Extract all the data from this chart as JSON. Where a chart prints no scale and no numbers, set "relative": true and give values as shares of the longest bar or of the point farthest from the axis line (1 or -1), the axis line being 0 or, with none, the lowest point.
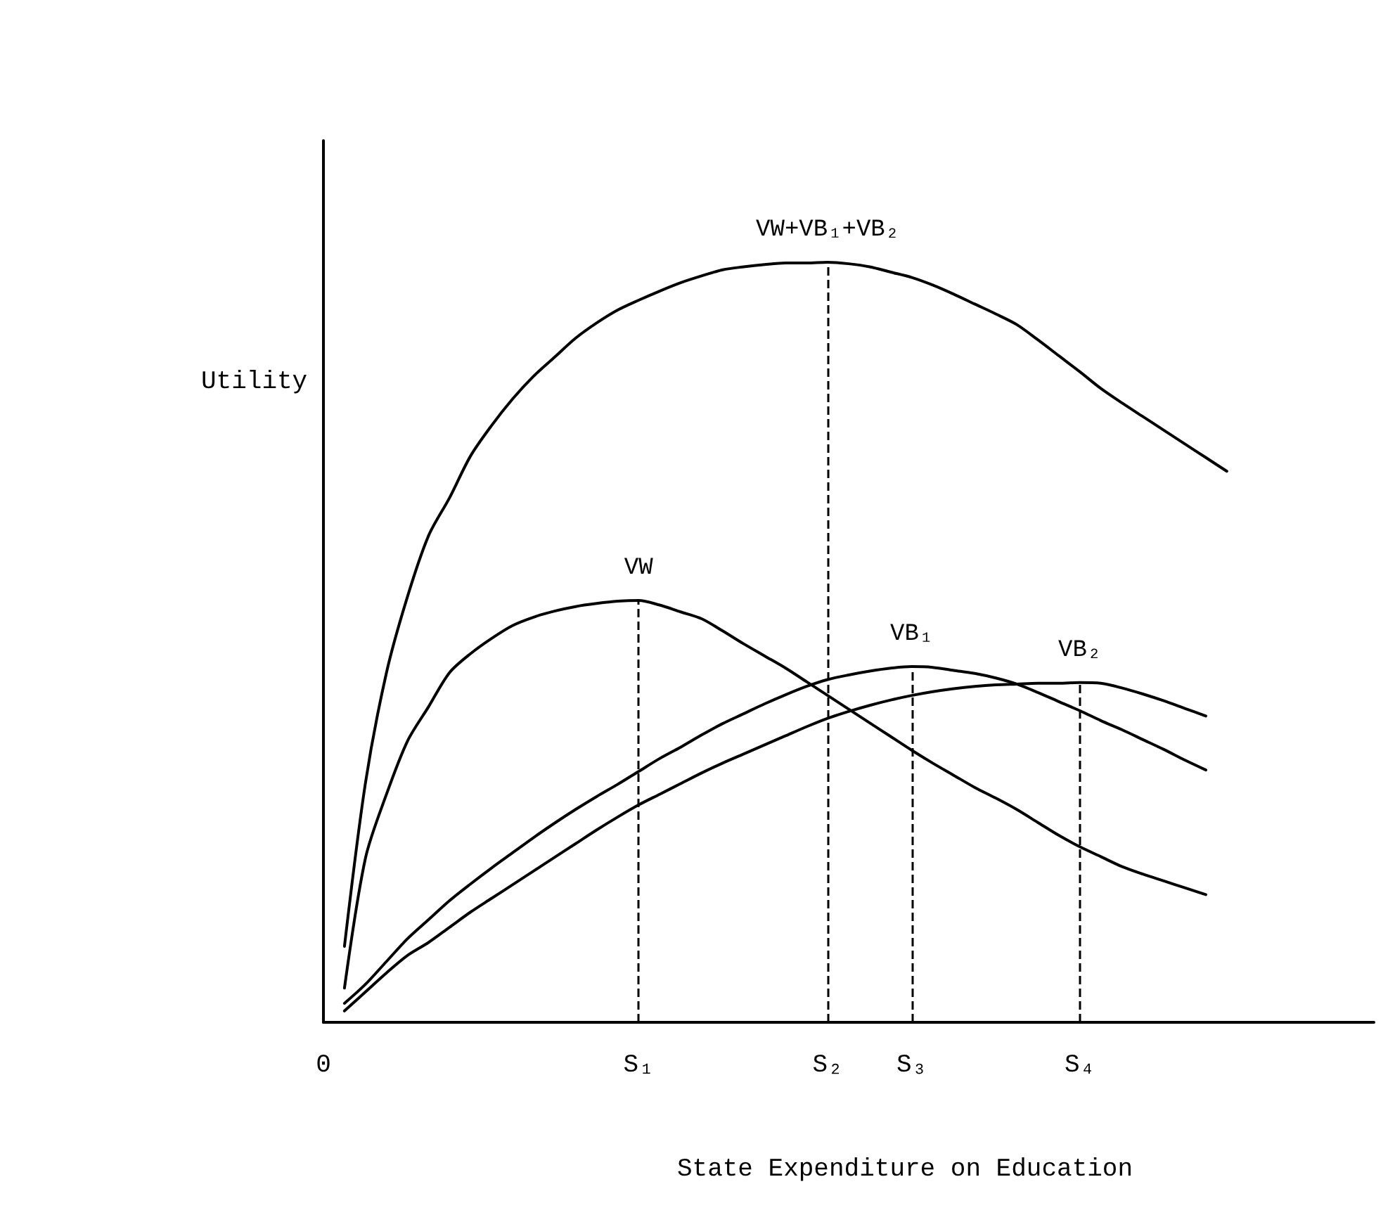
{
  "chart_data": {
    "type": "line",
    "relative": true,
    "xlabel": "State Expenditure on Education",
    "ylabel": "Utility",
    "categories": [
      "0",
      null,
      null,
      null,
      null,
      null,
      null,
      null,
      null,
      null,
      null,
      null,
      null,
      null,
      null,
      "S₁",
      null,
      null,
      null,
      null,
      null,
      null,
      null,
      null,
      "S₂",
      null,
      null,
      null,
      "S₃",
      null,
      null,
      null,
      null,
      null,
      null,
      null,
      "S₄",
      null,
      null,
      null,
      null,
      null,
      null,
      null,
      null,
      null,
      null,
      null,
      null,
      null,
      null
    ],
    "grid": false,
    "legend": false,
    "marker": "none",
    "line_style": "solid",
    "series": [
      {
        "name": "VW+VB₁+VB₂",
        "color": "#000000",
        "values": [
          null,
          0.1,
          0.315,
          0.46,
          0.56,
          0.64,
          0.69,
          0.745,
          0.785,
          0.82,
          0.85,
          0.875,
          0.9,
          0.92,
          0.937,
          0.95,
          0.962,
          0.973,
          0.982,
          0.99,
          0.994,
          0.997,
          0.999,
          0.999,
          1.0,
          0.998,
          0.994,
          0.987,
          0.98,
          0.97,
          0.958,
          0.945,
          0.932,
          0.918,
          0.898,
          0.877,
          0.856,
          0.834,
          0.815,
          0.797,
          0.779,
          0.761,
          0.743,
          0.725,
          null,
          null,
          null,
          null,
          null,
          null,
          null
        ]
      },
      {
        "name": "VW",
        "color": "#000000",
        "values": [
          null,
          0.045,
          0.216,
          0.3,
          0.37,
          0.415,
          0.46,
          0.485,
          0.505,
          0.522,
          0.533,
          0.541,
          0.547,
          0.551,
          0.554,
          0.555,
          0.549,
          0.54,
          0.531,
          0.515,
          0.498,
          0.482,
          0.466,
          0.448,
          0.43,
          0.412,
          0.394,
          0.376,
          0.358,
          0.341,
          0.325,
          0.309,
          0.295,
          0.28,
          0.263,
          0.246,
          0.231,
          0.218,
          0.205,
          0.195,
          0.186,
          0.177,
          0.168,
          null,
          null,
          null,
          null,
          null,
          null,
          null,
          null
        ]
      },
      {
        "name": "VB₁",
        "color": "#000000",
        "values": [
          null,
          0.025,
          0.05,
          0.08,
          0.11,
          0.135,
          0.16,
          0.182,
          0.203,
          0.223,
          0.243,
          0.262,
          0.28,
          0.297,
          0.313,
          0.33,
          0.347,
          0.362,
          0.378,
          0.393,
          0.406,
          0.419,
          0.431,
          0.442,
          0.451,
          0.457,
          0.462,
          0.466,
          0.468,
          0.467,
          0.463,
          0.459,
          0.453,
          0.445,
          0.434,
          0.422,
          0.41,
          0.397,
          0.385,
          0.372,
          0.359,
          0.345,
          0.332,
          null,
          null,
          null,
          null,
          null,
          null,
          null,
          null
        ]
      },
      {
        "name": "VB₂",
        "color": "#000000",
        "values": [
          null,
          0.015,
          0.04,
          0.065,
          0.088,
          0.105,
          0.125,
          0.145,
          0.163,
          0.181,
          0.199,
          0.217,
          0.235,
          0.253,
          0.27,
          0.286,
          0.3,
          0.314,
          0.328,
          0.341,
          0.353,
          0.365,
          0.377,
          0.389,
          0.4,
          0.409,
          0.417,
          0.424,
          0.43,
          0.435,
          0.439,
          0.442,
          0.444,
          0.445,
          0.446,
          0.446,
          0.447,
          0.446,
          0.44,
          0.432,
          0.423,
          0.413,
          0.403,
          null,
          null,
          null,
          null,
          null,
          null,
          null,
          null
        ]
      }
    ],
    "ref_lines": [
      {
        "axis": "x",
        "value": "S₁",
        "color": "#000000",
        "line_style": "dashed"
      },
      {
        "axis": "x",
        "value": "S₂",
        "color": "#000000",
        "line_style": "dashed"
      },
      {
        "axis": "x",
        "value": "S₃",
        "color": "#000000",
        "line_style": "dashed"
      },
      {
        "axis": "x",
        "value": "S₄",
        "color": "#000000",
        "line_style": "dashed"
      }
    ]
  }
}
